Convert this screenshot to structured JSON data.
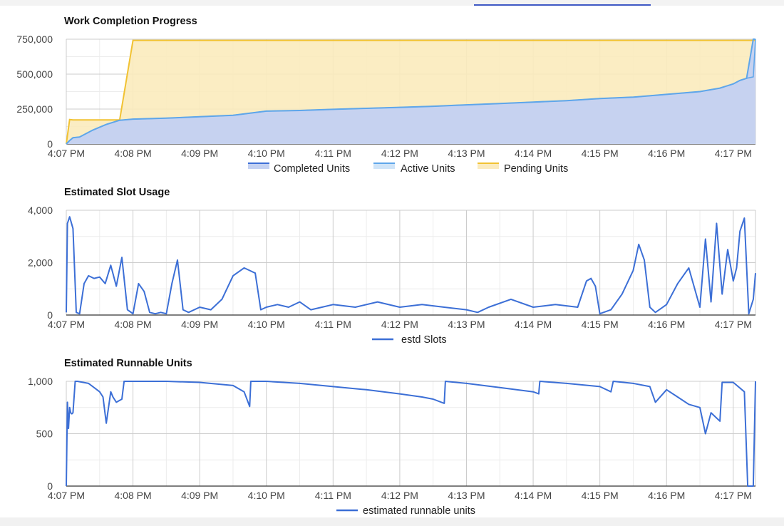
{
  "colors": {
    "completed": "#3c6fd6",
    "completed_fill": "#c3d1f2",
    "active": "#5ea6ea",
    "pending": "#f1c232",
    "pending_fill": "#fbebbd",
    "grid_major": "#cccccc",
    "grid_minor": "#ececec"
  },
  "x_tick_labels": [
    "4:07 PM",
    "4:08 PM",
    "4:09 PM",
    "4:10 PM",
    "4:11 PM",
    "4:12 PM",
    "4:13 PM",
    "4:14 PM",
    "4:15 PM",
    "4:16 PM",
    "4:17 PM"
  ],
  "chart_data": [
    {
      "type": "area",
      "title": "Work Completion Progress",
      "x_unit": "time",
      "xlim": [
        "4:07 PM",
        "4:17:20 PM"
      ],
      "ylim": [
        0,
        750000
      ],
      "y_ticks": [
        "0",
        "250,000",
        "500,000",
        "750,000"
      ],
      "y_tick_values": [
        0,
        250000,
        500000,
        750000
      ],
      "grid": true,
      "legend_position": "bottom",
      "legend": [
        "Completed Units",
        "Active Units",
        "Pending Units"
      ],
      "x": [
        "4:07:00",
        "4:07:03",
        "4:07:06",
        "4:07:12",
        "4:07:24",
        "4:07:36",
        "4:07:48",
        "4:08:00",
        "4:08:30",
        "4:09:00",
        "4:09:30",
        "4:10:00",
        "4:10:30",
        "4:11:00",
        "4:11:30",
        "4:12:00",
        "4:12:30",
        "4:13:00",
        "4:13:30",
        "4:14:00",
        "4:14:30",
        "4:15:00",
        "4:15:30",
        "4:16:00",
        "4:16:30",
        "4:16:48",
        "4:17:00",
        "4:17:06",
        "4:17:12",
        "4:17:18",
        "4:17:20"
      ],
      "series": [
        {
          "name": "Completed Units",
          "values": [
            0,
            25000,
            45000,
            50000,
            100000,
            140000,
            170000,
            178000,
            185000,
            195000,
            205000,
            235000,
            240000,
            248000,
            255000,
            262000,
            270000,
            280000,
            290000,
            300000,
            310000,
            325000,
            335000,
            355000,
            375000,
            400000,
            430000,
            455000,
            470000,
            480000,
            750000
          ]
        },
        {
          "name": "Active Units",
          "values": [
            0,
            25000,
            45000,
            50000,
            100000,
            140000,
            170000,
            178000,
            185000,
            195000,
            205000,
            235000,
            240000,
            248000,
            255000,
            262000,
            270000,
            280000,
            290000,
            300000,
            310000,
            325000,
            335000,
            355000,
            375000,
            400000,
            430000,
            455000,
            470000,
            750000,
            750000
          ]
        },
        {
          "name": "Pending Units",
          "values": [
            0,
            175000,
            172000,
            172000,
            172000,
            172000,
            172000,
            742000,
            742000,
            742000,
            742000,
            742000,
            742000,
            742000,
            742000,
            742000,
            742000,
            742000,
            742000,
            742000,
            742000,
            742000,
            742000,
            742000,
            742000,
            742000,
            742000,
            742000,
            742000,
            742000,
            742000
          ]
        }
      ]
    },
    {
      "type": "line",
      "title": "Estimated Slot Usage",
      "x_unit": "time",
      "xlim": [
        "4:07 PM",
        "4:17:20 PM"
      ],
      "ylim": [
        0,
        4000
      ],
      "y_ticks": [
        "0",
        "2,000",
        "4,000"
      ],
      "y_tick_values": [
        0,
        2000,
        4000
      ],
      "grid": true,
      "legend_position": "bottom",
      "legend": [
        "estd Slots"
      ],
      "x": [
        "4:07:00",
        "4:07:01",
        "4:07:03",
        "4:07:06",
        "4:07:09",
        "4:07:12",
        "4:07:16",
        "4:07:20",
        "4:07:25",
        "4:07:30",
        "4:07:35",
        "4:07:40",
        "4:07:45",
        "4:07:50",
        "4:07:55",
        "4:08:00",
        "4:08:05",
        "4:08:10",
        "4:08:15",
        "4:08:20",
        "4:08:25",
        "4:08:30",
        "4:08:35",
        "4:08:40",
        "4:08:45",
        "4:08:50",
        "4:09:00",
        "4:09:10",
        "4:09:20",
        "4:09:30",
        "4:09:40",
        "4:09:45",
        "4:09:50",
        "4:09:55",
        "4:10:00",
        "4:10:10",
        "4:10:20",
        "4:10:30",
        "4:10:40",
        "4:10:50",
        "4:11:00",
        "4:11:20",
        "4:11:40",
        "4:12:00",
        "4:12:20",
        "4:12:40",
        "4:13:00",
        "4:13:10",
        "4:13:20",
        "4:13:40",
        "4:14:00",
        "4:14:20",
        "4:14:40",
        "4:14:48",
        "4:14:52",
        "4:14:56",
        "4:15:00",
        "4:15:10",
        "4:15:20",
        "4:15:30",
        "4:15:35",
        "4:15:40",
        "4:15:45",
        "4:15:50",
        "4:16:00",
        "4:16:10",
        "4:16:20",
        "4:16:30",
        "4:16:35",
        "4:16:40",
        "4:16:45",
        "4:16:50",
        "4:16:55",
        "4:17:00",
        "4:17:03",
        "4:17:06",
        "4:17:10",
        "4:17:14",
        "4:17:18",
        "4:17:20"
      ],
      "series": [
        {
          "name": "estd Slots",
          "values": [
            100,
            3500,
            3750,
            3300,
            100,
            50,
            1200,
            1500,
            1400,
            1450,
            1200,
            1900,
            1100,
            2200,
            200,
            50,
            1200,
            900,
            100,
            50,
            100,
            50,
            1200,
            2100,
            200,
            100,
            300,
            200,
            600,
            1500,
            1800,
            1700,
            1600,
            200,
            300,
            400,
            300,
            500,
            200,
            300,
            400,
            300,
            500,
            300,
            400,
            300,
            200,
            100,
            300,
            600,
            300,
            400,
            300,
            1300,
            1400,
            1100,
            50,
            200,
            800,
            1700,
            2700,
            2100,
            300,
            100,
            400,
            1200,
            1800,
            300,
            2900,
            500,
            3500,
            800,
            2500,
            1300,
            1800,
            3200,
            3700,
            50,
            600,
            1600
          ]
        }
      ]
    },
    {
      "type": "line",
      "title": "Estimated Runnable Units",
      "x_unit": "time",
      "xlim": [
        "4:07 PM",
        "4:17:20 PM"
      ],
      "ylim": [
        0,
        1000
      ],
      "y_ticks": [
        "0",
        "500",
        "1,000"
      ],
      "y_tick_values": [
        0,
        500,
        1000
      ],
      "grid": true,
      "legend_position": "bottom",
      "legend": [
        "estimated runnable units"
      ],
      "x": [
        "4:07:00",
        "4:07:01",
        "4:07:02",
        "4:07:03",
        "4:07:04",
        "4:07:05",
        "4:07:06",
        "4:07:08",
        "4:07:10",
        "4:07:20",
        "4:07:30",
        "4:07:33",
        "4:07:36",
        "4:07:40",
        "4:07:42",
        "4:07:45",
        "4:07:50",
        "4:07:52",
        "4:07:55",
        "4:08:00",
        "4:08:30",
        "4:09:00",
        "4:09:30",
        "4:09:40",
        "4:09:45",
        "4:09:46",
        "4:10:00",
        "4:10:30",
        "4:11:00",
        "4:11:30",
        "4:12:00",
        "4:12:20",
        "4:12:30",
        "4:12:40",
        "4:12:41",
        "4:13:00",
        "4:13:30",
        "4:14:00",
        "4:14:05",
        "4:14:06",
        "4:14:30",
        "4:15:00",
        "4:15:10",
        "4:15:12",
        "4:15:30",
        "4:15:45",
        "4:15:50",
        "4:16:00",
        "4:16:10",
        "4:16:20",
        "4:16:30",
        "4:16:35",
        "4:16:40",
        "4:16:45",
        "4:16:48",
        "4:16:50",
        "4:17:00",
        "4:17:10",
        "4:17:13",
        "4:17:15",
        "4:17:16",
        "4:17:18",
        "4:17:20"
      ],
      "series": [
        {
          "name": "estimated runnable units",
          "values": [
            0,
            800,
            550,
            750,
            700,
            690,
            700,
            1000,
            1000,
            980,
            900,
            850,
            600,
            900,
            850,
            800,
            830,
            1000,
            1000,
            1000,
            1000,
            990,
            960,
            900,
            760,
            1000,
            1000,
            980,
            950,
            920,
            880,
            850,
            830,
            790,
            1000,
            980,
            940,
            900,
            880,
            1000,
            980,
            950,
            900,
            1000,
            980,
            950,
            800,
            920,
            850,
            780,
            750,
            500,
            700,
            650,
            620,
            990,
            990,
            900,
            0,
            0,
            0,
            0,
            1000
          ]
        }
      ]
    }
  ]
}
